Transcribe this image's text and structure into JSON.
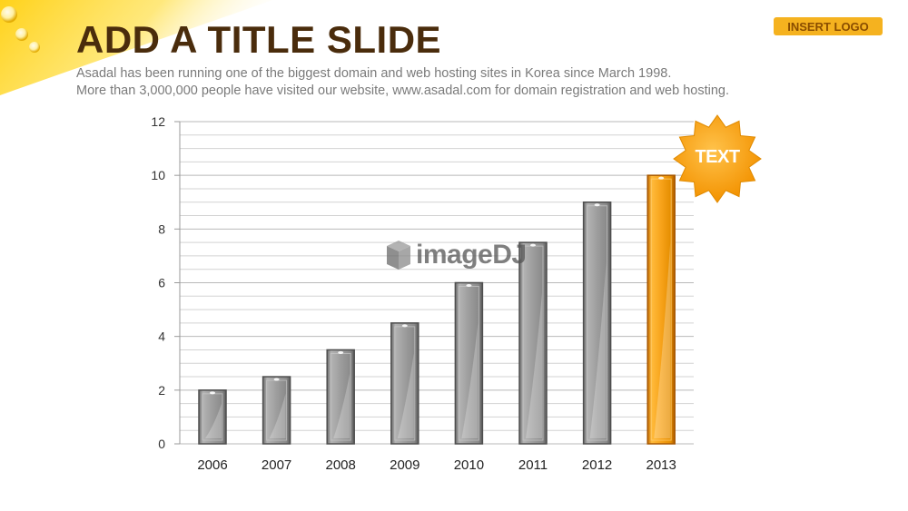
{
  "slide": {
    "title": "ADD A TITLE SLIDE",
    "subtitle_lines": [
      "Asadal has been running one of the biggest domain and web hosting sites in Korea since March 1998.",
      "More than 3,000,000 people have visited our website,  www.asadal.com for domain registration and web hosting."
    ],
    "logo_label": "INSERT LOGO",
    "callout_label": "TEXT",
    "watermark_text": "imageDJ"
  },
  "icons": {
    "corner": "water-drops-swoosh",
    "callout": "starburst-icon",
    "watermark": "cube-logo-icon"
  },
  "colors": {
    "title": "#4a2c0c",
    "accent": "#f5a313",
    "bar_gray": "#9e9e9e",
    "bar_highlight": "#f5a313",
    "gridline": "#c8c8c8"
  },
  "chart_data": {
    "type": "bar",
    "categories": [
      "2006",
      "2007",
      "2008",
      "2009",
      "2010",
      "2011",
      "2012",
      "2013"
    ],
    "values": [
      2,
      2.5,
      3.5,
      4.5,
      6,
      7.5,
      9,
      10
    ],
    "highlight": "2013",
    "ylim": [
      0,
      12
    ],
    "yticks": [
      0,
      2,
      4,
      6,
      8,
      10,
      12
    ],
    "minor_grid_step": 0.5,
    "grid": true,
    "legend": "none",
    "title": "",
    "xlabel": "",
    "ylabel": ""
  }
}
